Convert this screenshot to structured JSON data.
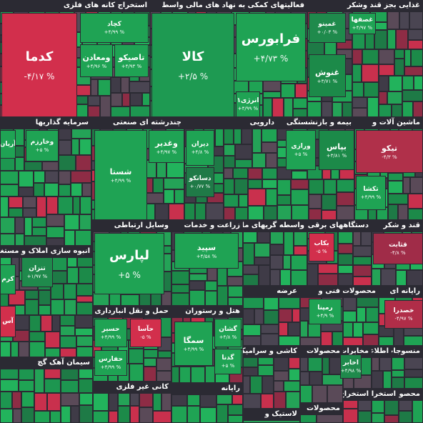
{
  "sectors": [
    {
      "title": "استخراج کانه های فلزی",
      "tiles": [
        {
          "symbol": "کدما",
          "change": "-۴/۱۷ %"
        },
        {
          "symbol": "کچاد",
          "change": "+۴/۹۹ %"
        },
        {
          "symbol": "ومعادن",
          "change": "+۴/۹۶ %"
        },
        {
          "symbol": "تاصیکو",
          "change": "+۴/۹۳ %"
        }
      ]
    },
    {
      "title": "فعالیتهای کمکی به نهاد های مالی واسط",
      "tiles": [
        {
          "symbol": "کالا",
          "change": "+۲/۵ %"
        },
        {
          "symbol": "فرابورس",
          "change": "+۴/۷۳ %"
        },
        {
          "symbol": "انرژی۱",
          "change": "+۴/۹۹ %"
        }
      ]
    },
    {
      "title": "غذایی بجز قند وشکر",
      "tiles": [
        {
          "symbol": "غصفها",
          "change": "+۴/۹۷ %"
        },
        {
          "symbol": "غمینو",
          "change": "+۰/۰۳ %"
        },
        {
          "symbol": "غنوش",
          "change": "+۳/۷۱ %"
        }
      ]
    },
    {
      "title": "سرمایه گذاریها",
      "tiles": [
        {
          "symbol": "آریان"
        },
        {
          "symbol": "وخارزم",
          "change": "+۵ %"
        }
      ]
    },
    {
      "title": "چندرشته ای صنعتی",
      "tiles": [
        {
          "symbol": "شستا",
          "change": "+۴/۹۹ %"
        },
        {
          "symbol": "وغدیر",
          "change": "+۴/۹۷ %"
        }
      ]
    },
    {
      "title": "دارویی",
      "tiles": [
        {
          "symbol": "دیران",
          "change": "+۴/۸ %"
        },
        {
          "symbol": "دسانکو",
          "change": "+۰/۷۷ %"
        }
      ]
    },
    {
      "title": "بیمه و بازنشستگی",
      "tiles": [
        {
          "symbol": "ورازی",
          "change": "+۵ %"
        },
        {
          "symbol": "بپاس",
          "change": "+۳/۸۱ %"
        }
      ]
    },
    {
      "title": "ماشین آلات و",
      "tiles": [
        {
          "symbol": "تیکو",
          "change": "-۴/۳ %"
        },
        {
          "symbol": "تکشا",
          "change": "+۴/۹۹ %"
        }
      ]
    },
    {
      "title": "انبوه سازی املاک و مستغلات",
      "tiles": [
        {
          "symbol": "تنزان",
          "change": "+۱/۹۷ %"
        },
        {
          "symbol": "کرم"
        },
        {
          "symbol": "آس"
        }
      ]
    },
    {
      "title": "وسایل ارتباطی",
      "tiles": [
        {
          "symbol": "لپارس",
          "change": "+۵ %"
        }
      ]
    },
    {
      "title": "زراعت و خدمات",
      "tiles": [
        {
          "symbol": "سپید",
          "change": "+۴/۵۸ %"
        }
      ]
    },
    {
      "title": "واسطه گریهای مالی",
      "tiles": []
    },
    {
      "title": "دستگاههای برقی",
      "tiles": [
        {
          "symbol": "بکاب",
          "change": "-۵ %"
        }
      ]
    },
    {
      "title": "قند و شکر",
      "tiles": [
        {
          "symbol": "قثابت",
          "change": "-۴/۸ %"
        }
      ]
    },
    {
      "title": "عرضه",
      "tiles": []
    },
    {
      "title": "فنی و",
      "tiles": [
        {
          "symbol": "رمپنا",
          "change": "+۴/۹ %"
        }
      ]
    },
    {
      "title": "محصولات",
      "tiles": []
    },
    {
      "title": "رایانه ای",
      "tiles": [
        {
          "symbol": "خصدرا",
          "change": "-۴/۹۷ %"
        }
      ]
    },
    {
      "title": "حمل و نقل انبارداری و",
      "tiles": [
        {
          "symbol": "حسیر",
          "change": "+۴/۹۹ %"
        },
        {
          "symbol": "حآسا",
          "change": "-۵ %"
        },
        {
          "symbol": "حفارس",
          "change": "+۴/۹۹ %"
        }
      ]
    },
    {
      "title": "هتل و رستوران",
      "tiles": [
        {
          "symbol": "گشان",
          "change": "+۴/۸ %"
        },
        {
          "symbol": "سمگا",
          "change": "+۴/۹۹ %"
        },
        {
          "symbol": "گدنا",
          "change": "+۵ %"
        }
      ]
    },
    {
      "title": "کاشی و سرامیک",
      "tiles": []
    },
    {
      "title": "محصولات",
      "tiles": []
    },
    {
      "title": "مخابرات",
      "tiles": [
        {
          "symbol": "اخابر",
          "change": "+۴/۹۸ %"
        }
      ]
    },
    {
      "title": "اطلاعات",
      "tiles": []
    },
    {
      "title": "منسوجات",
      "tiles": []
    },
    {
      "title": "سیمان آهک گچ",
      "tiles": []
    },
    {
      "title": "کانی غیر فلزی",
      "tiles": []
    },
    {
      "title": "رایانه",
      "tiles": []
    },
    {
      "title": "استخراج",
      "tiles": []
    },
    {
      "title": "استخراج",
      "tiles": []
    },
    {
      "title": "محصولا",
      "tiles": []
    },
    {
      "title": "لاستیک و",
      "tiles": []
    },
    {
      "title": "محصولات",
      "tiles": []
    }
  ]
}
